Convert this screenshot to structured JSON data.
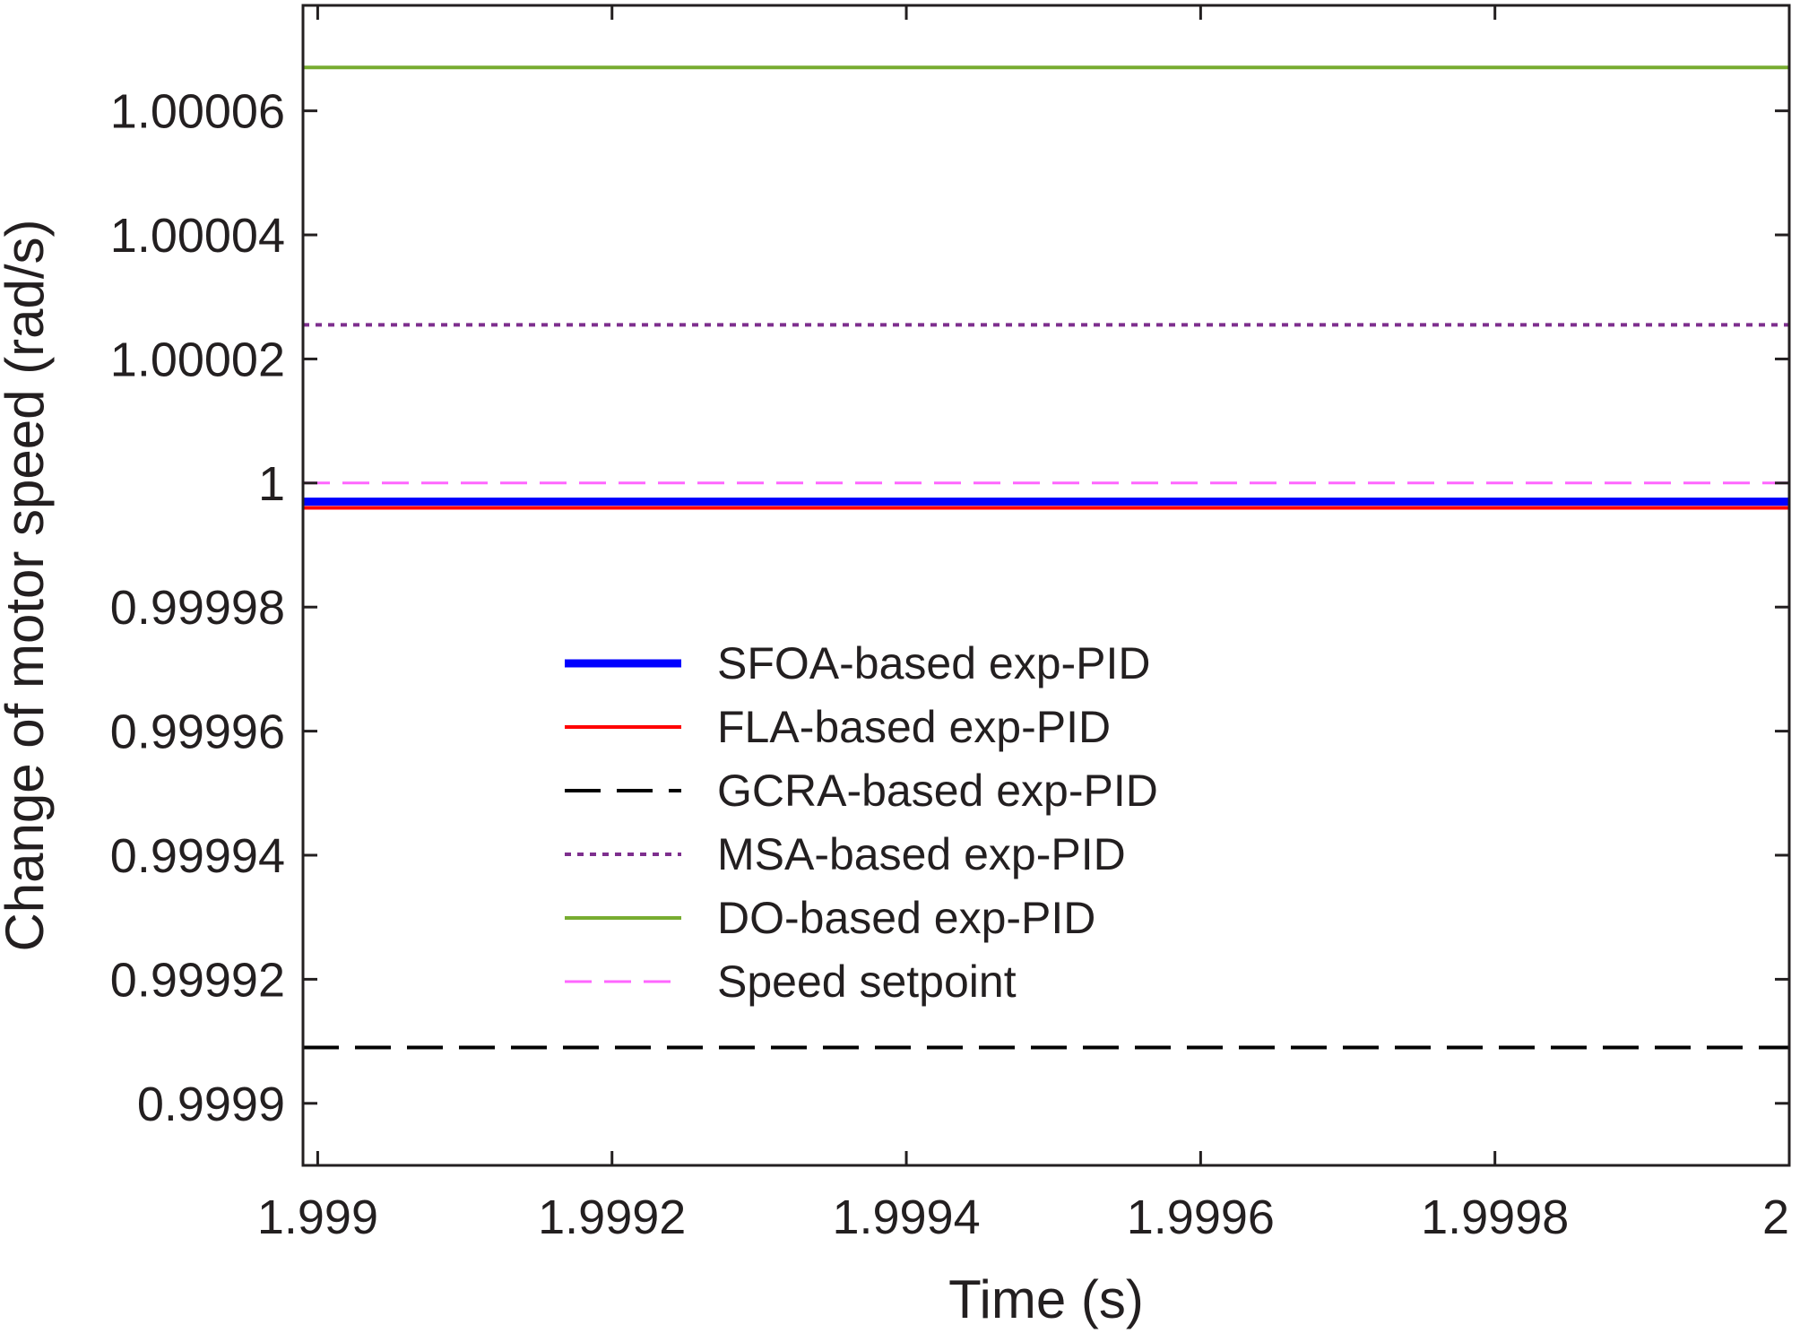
{
  "chart_data": {
    "type": "line",
    "title": "",
    "xlabel": "Time (s)",
    "ylabel": "Change of motor speed (rad/s)",
    "xlim": [
      1.99899,
      2.0
    ],
    "ylim": [
      0.99989,
      1.000077
    ],
    "xticks": [
      1.999,
      1.9992,
      1.9994,
      1.9996,
      1.9998,
      2.0
    ],
    "xtick_labels": [
      "1.999",
      "1.9992",
      "1.9994",
      "1.9996",
      "1.9998",
      "2"
    ],
    "yticks": [
      0.9999,
      0.99992,
      0.99994,
      0.99996,
      0.99998,
      1.0,
      1.00002,
      1.00004,
      1.00006
    ],
    "ytick_labels": [
      "0.9999",
      "0.99992",
      "0.99994",
      "0.99996",
      "0.99998",
      "1",
      "1.00002",
      "1.00004",
      "1.00006"
    ],
    "grid": false,
    "legend_position": "center",
    "series": [
      {
        "name": "SFOA-based exp-PID",
        "x": [
          1.99899,
          2.0
        ],
        "values": [
          0.999997,
          0.999997
        ],
        "color": "#0000ff",
        "style": "solid",
        "weight": "thick"
      },
      {
        "name": "FLA-based exp-PID",
        "x": [
          1.99899,
          2.0
        ],
        "values": [
          0.999996,
          0.999996
        ],
        "color": "#ff0000",
        "style": "solid",
        "weight": "normal"
      },
      {
        "name": "GCRA-based exp-PID",
        "x": [
          1.99899,
          2.0
        ],
        "values": [
          0.999909,
          0.999909
        ],
        "color": "#000000",
        "style": "dashed",
        "weight": "normal"
      },
      {
        "name": "MSA-based exp-PID",
        "x": [
          1.99899,
          2.0
        ],
        "values": [
          1.0000255,
          1.0000255
        ],
        "color": "#7e2f8e",
        "style": "dotted",
        "weight": "normal"
      },
      {
        "name": "DO-based exp-PID",
        "x": [
          1.99899,
          2.0
        ],
        "values": [
          1.000067,
          1.000067
        ],
        "color": "#77ac30",
        "style": "solid",
        "weight": "normal"
      },
      {
        "name": "Speed setpoint",
        "x": [
          1.99899,
          2.0
        ],
        "values": [
          1.0,
          1.0
        ],
        "color": "#ff66ff",
        "style": "dashed-light",
        "weight": "normal"
      }
    ]
  }
}
